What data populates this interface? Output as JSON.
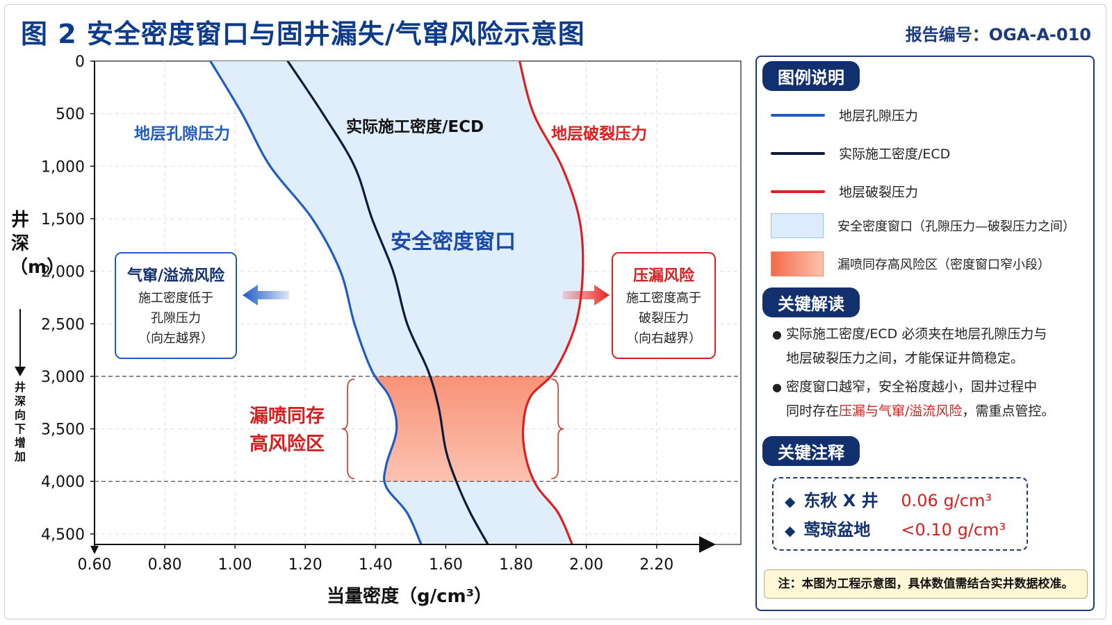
{
  "header": {
    "title": "图 2  安全密度窗口与固井漏失/气窜风险示意图",
    "report_no": "报告编号：OGA-A-010"
  },
  "axes": {
    "ylabel": "井深（m）",
    "ydown": "井深向下增加",
    "xlabel": "当量密度（g/cm³）"
  },
  "chart_data": {
    "type": "line",
    "title": "",
    "xlabel": "当量密度（g/cm³）",
    "ylabel": "井深（m）",
    "xlim": [
      0.6,
      2.44
    ],
    "ylim": [
      0,
      4600
    ],
    "y_inverted": true,
    "x_ticks": [
      "0.60",
      "0.80",
      "1.00",
      "1.20",
      "1.40",
      "1.60",
      "1.80",
      "2.00",
      "2.20"
    ],
    "y_ticks": [
      "0",
      "500",
      "1,000",
      "1,500",
      "2,000",
      "2,500",
      "3,000",
      "3,500",
      "4,000",
      "4,500"
    ],
    "grid": true,
    "series": [
      {
        "name": "地层孔隙压力",
        "color": "#1f5bc4",
        "points": [
          [
            0.93,
            0
          ],
          [
            1.02,
            500
          ],
          [
            1.1,
            1000
          ],
          [
            1.22,
            1500
          ],
          [
            1.3,
            2000
          ],
          [
            1.34,
            2500
          ],
          [
            1.39,
            2950
          ],
          [
            1.44,
            3200
          ],
          [
            1.46,
            3500
          ],
          [
            1.43,
            3850
          ],
          [
            1.43,
            4050
          ],
          [
            1.49,
            4300
          ],
          [
            1.53,
            4600
          ]
        ]
      },
      {
        "name": "实际施工密度/ECD",
        "color": "#0e1a3c",
        "points": [
          [
            1.15,
            0
          ],
          [
            1.25,
            500
          ],
          [
            1.34,
            1000
          ],
          [
            1.39,
            1500
          ],
          [
            1.45,
            2000
          ],
          [
            1.49,
            2500
          ],
          [
            1.55,
            2950
          ],
          [
            1.58,
            3300
          ],
          [
            1.6,
            3700
          ],
          [
            1.63,
            4000
          ],
          [
            1.67,
            4300
          ],
          [
            1.72,
            4600
          ]
        ]
      },
      {
        "name": "地层破裂压力",
        "color": "#de1f1f",
        "points": [
          [
            1.81,
            0
          ],
          [
            1.85,
            500
          ],
          [
            1.93,
            1000
          ],
          [
            1.98,
            1500
          ],
          [
            1.99,
            2000
          ],
          [
            1.97,
            2500
          ],
          [
            1.91,
            2950
          ],
          [
            1.84,
            3200
          ],
          [
            1.82,
            3500
          ],
          [
            1.83,
            3800
          ],
          [
            1.86,
            4050
          ],
          [
            1.92,
            4300
          ],
          [
            1.96,
            4600
          ]
        ]
      }
    ],
    "risk_band": {
      "from": 3000,
      "to": 4000
    },
    "annotations": {
      "pore_label": "地层孔隙压力",
      "ecd_label": "实际施工密度/ECD",
      "frac_label": "地层破裂压力",
      "window_label": "安全密度窗口",
      "band_label_1": "漏喷同存",
      "band_label_2": "高风险区"
    }
  },
  "risk_left": {
    "title": "气窜/溢流风险",
    "line1": "施工密度低于",
    "line2": "孔隙压力",
    "line3": "（向左越界）"
  },
  "risk_right": {
    "title": "压漏风险",
    "line1": "施工密度高于",
    "line2": "破裂压力",
    "line3": "（向右越界）"
  },
  "colors": {
    "navy": "#12306e",
    "pore": "#1f5bc4",
    "ecd": "#0e1a3c",
    "frac": "#de1f1f",
    "window_fill": "#dcecfa",
    "risk_fill": "#f77a5a"
  },
  "legend": {
    "title": "图例说明",
    "items": [
      {
        "label": "地层孔隙压力"
      },
      {
        "label": "实际施工密度/ECD"
      },
      {
        "label": "地层破裂压力"
      },
      {
        "label": "安全密度窗口（孔隙压力—破裂压力之间）"
      },
      {
        "label": "漏喷同存高风险区（密度窗口窄小段）"
      }
    ]
  },
  "interpretation": {
    "title": "关键解读",
    "b1_line1": "实际施工密度/ECD 必须夹在地层孔隙压力与",
    "b1_line2": "地层破裂压力之间，才能保证井筒稳定。",
    "b2_line1": "密度窗口越窄，安全裕度越小，固井过程中",
    "b2_pre": "同时存在",
    "b2_hl": "压漏与气窜/溢流风险",
    "b2_post": "，需重点管控。"
  },
  "notes": {
    "title": "关键注释",
    "rows": [
      {
        "name": "东秋 X 井",
        "value": "0.06 g/cm³"
      },
      {
        "name": "莺琼盆地",
        "value": "<0.10 g/cm³"
      }
    ]
  },
  "footnote": "注：本图为工程示意图，具体数值需结合实井数据校准。"
}
